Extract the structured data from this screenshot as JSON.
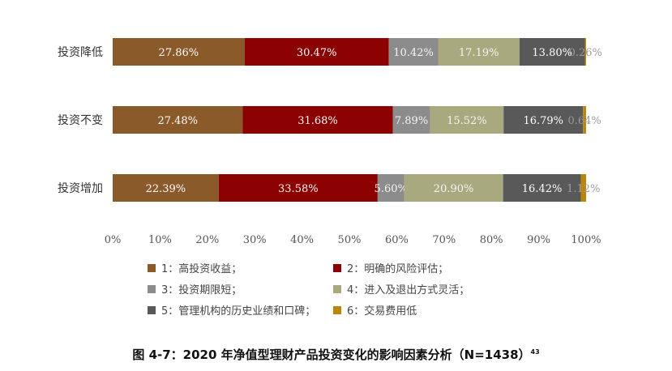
{
  "chart_data": {
    "type": "bar",
    "orientation": "horizontal",
    "stacked": true,
    "categories": [
      "投资降低",
      "投资不变",
      "投资增加"
    ],
    "series": [
      {
        "name": "1：高投资收益；",
        "values": [
          27.86,
          27.48,
          22.39
        ],
        "labels": [
          "27.86%",
          "27.48%",
          "22.39%"
        ],
        "color": "#8B5A2B"
      },
      {
        "name": "2：明确的风险评估；",
        "values": [
          30.47,
          31.68,
          33.58
        ],
        "labels": [
          "30.47%",
          "31.68%",
          "33.58%"
        ],
        "color": "#8B0000"
      },
      {
        "name": "3：投资期限短；",
        "values": [
          10.42,
          7.89,
          5.6
        ],
        "labels": [
          "10.42%",
          "7.89%",
          "5.60%"
        ],
        "color": "#8C8C8C"
      },
      {
        "name": "4：进入及退出方式灵活；",
        "values": [
          17.19,
          15.52,
          20.9
        ],
        "labels": [
          "17.19%",
          "15.52%",
          "20.90%"
        ],
        "color": "#A9A97F"
      },
      {
        "name": "5：管理机构的历史业绩和口碑；",
        "values": [
          13.8,
          16.79,
          16.42
        ],
        "labels": [
          "13.80%",
          "16.79%",
          "16.42%"
        ],
        "color": "#595959"
      },
      {
        "name": "6：交易费用低",
        "values": [
          0.26,
          0.64,
          1.12
        ],
        "labels": [
          "0.26%",
          "0.64%",
          "1.12%"
        ],
        "color": "#B8860B"
      }
    ],
    "xlim": [
      0,
      100
    ],
    "xticks": [
      "0%",
      "10%",
      "20%",
      "30%",
      "40%",
      "50%",
      "60%",
      "70%",
      "80%",
      "90%",
      "100%"
    ],
    "grid": false,
    "legend_position": "bottom"
  },
  "caption": {
    "text": "图 4-7：2020 年净值型理财产品投资变化的影响因素分析（N=1438）",
    "footnote": "43"
  }
}
